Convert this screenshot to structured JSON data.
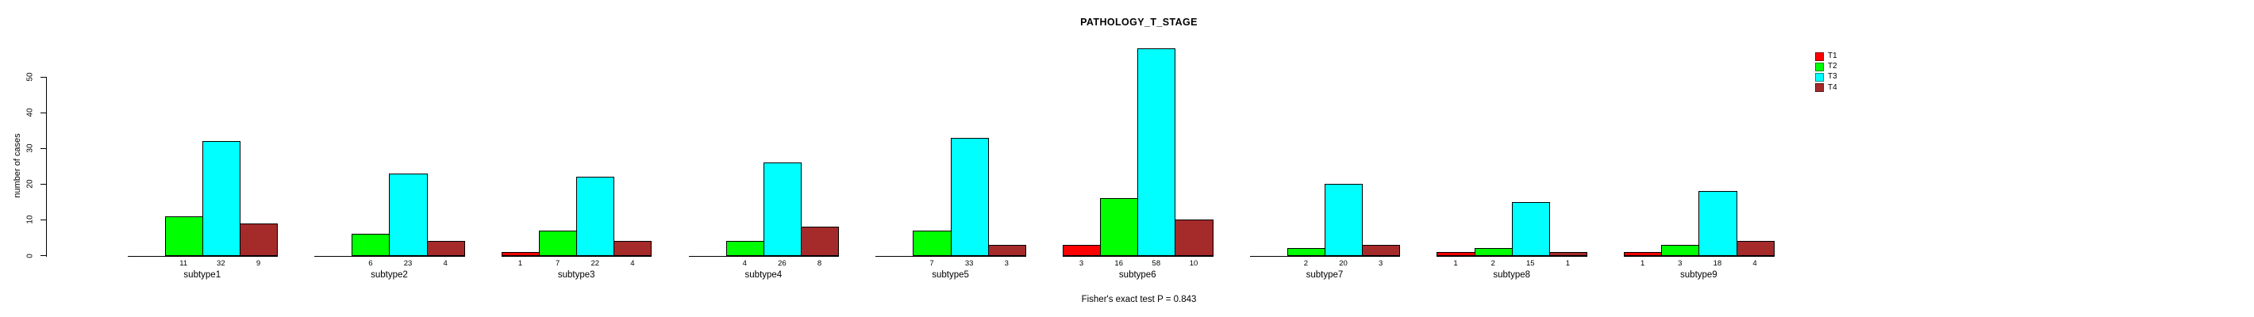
{
  "chart_data": {
    "type": "bar",
    "title": "PATHOLOGY_T_STAGE",
    "subtitle": "Fisher's exact test P = 0.843",
    "ylabel": "number of cases",
    "xlabel": "",
    "yticks": [
      0,
      10,
      20,
      30,
      40,
      50
    ],
    "ylim": [
      0,
      58
    ],
    "grid": false,
    "legend_position": "top-right",
    "value_labels": "shown under each nonzero bar",
    "categories": [
      "subtype1",
      "subtype2",
      "subtype3",
      "subtype4",
      "subtype5",
      "subtype6",
      "subtype7",
      "subtype8",
      "subtype9"
    ],
    "series": [
      {
        "name": "T1",
        "color": "#ff0000",
        "values": [
          0,
          0,
          1,
          0,
          0,
          3,
          0,
          1,
          1
        ]
      },
      {
        "name": "T2",
        "color": "#00ff00",
        "values": [
          11,
          6,
          7,
          4,
          7,
          16,
          2,
          2,
          3
        ]
      },
      {
        "name": "T3",
        "color": "#00ffff",
        "values": [
          32,
          23,
          22,
          26,
          33,
          58,
          20,
          15,
          18
        ]
      },
      {
        "name": "T4",
        "color": "#a52a2a",
        "values": [
          9,
          4,
          4,
          8,
          3,
          10,
          3,
          1,
          4
        ]
      }
    ]
  }
}
